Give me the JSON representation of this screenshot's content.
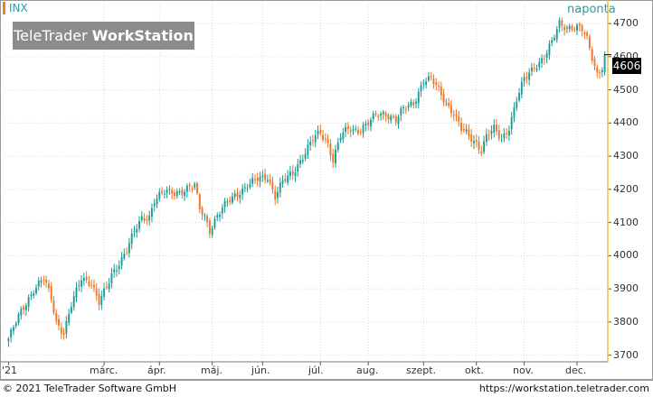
{
  "header": {
    "symbol": "INX",
    "frequency": "naponta",
    "brand_prefix": "TeleTrader ",
    "brand_bold": "WorkStation"
  },
  "last_price_label": "4606",
  "footer": {
    "copyright": "© 2021  TeleTrader Software GmbH",
    "url": "https://workstation.teletrader.com"
  },
  "colors": {
    "up": "#1a9b96",
    "down": "#f07424",
    "grid": "#d9d9d9",
    "axis_line": "#f0c040",
    "frame": "#999999"
  },
  "chart_data": {
    "type": "candlestick",
    "ylim": [
      3680,
      4760
    ],
    "y_ticks": [
      "3700",
      "3800",
      "3900",
      "4000",
      "4100",
      "4200",
      "4300",
      "4400",
      "4500",
      "4600",
      "4700"
    ],
    "x_tick_labels": [
      "'21",
      "márc.",
      "ápr.",
      "máj.",
      "jún.",
      "júl.",
      "aug.",
      "szept.",
      "okt.",
      "nov.",
      "dec."
    ],
    "trading_days": 238,
    "month_starts": [
      0,
      38,
      60,
      81,
      101,
      124,
      143,
      165,
      186,
      205,
      226
    ],
    "anchors": [
      [
        0,
        3750
      ],
      [
        5,
        3830
      ],
      [
        10,
        3900
      ],
      [
        14,
        3930
      ],
      [
        17,
        3870
      ],
      [
        19,
        3800
      ],
      [
        22,
        3770
      ],
      [
        25,
        3850
      ],
      [
        29,
        3930
      ],
      [
        33,
        3920
      ],
      [
        36,
        3860
      ],
      [
        39,
        3900
      ],
      [
        41,
        3940
      ],
      [
        44,
        3980
      ],
      [
        47,
        4020
      ],
      [
        50,
        4070
      ],
      [
        53,
        4110
      ],
      [
        56,
        4120
      ],
      [
        58,
        4170
      ],
      [
        62,
        4190
      ],
      [
        66,
        4190
      ],
      [
        70,
        4200
      ],
      [
        74,
        4210
      ],
      [
        76,
        4140
      ],
      [
        78,
        4120
      ],
      [
        80,
        4080
      ],
      [
        83,
        4120
      ],
      [
        87,
        4160
      ],
      [
        91,
        4190
      ],
      [
        95,
        4210
      ],
      [
        99,
        4230
      ],
      [
        103,
        4240
      ],
      [
        106,
        4180
      ],
      [
        109,
        4220
      ],
      [
        113,
        4250
      ],
      [
        117,
        4300
      ],
      [
        121,
        4350
      ],
      [
        124,
        4370
      ],
      [
        127,
        4340
      ],
      [
        129,
        4290
      ],
      [
        132,
        4360
      ],
      [
        135,
        4380
      ],
      [
        139,
        4380
      ],
      [
        143,
        4400
      ],
      [
        146,
        4420
      ],
      [
        150,
        4430
      ],
      [
        154,
        4410
      ],
      [
        157,
        4440
      ],
      [
        161,
        4460
      ],
      [
        165,
        4530
      ],
      [
        168,
        4530
      ],
      [
        171,
        4500
      ],
      [
        174,
        4460
      ],
      [
        177,
        4430
      ],
      [
        180,
        4380
      ],
      [
        183,
        4360
      ],
      [
        186,
        4340
      ],
      [
        188,
        4320
      ],
      [
        190,
        4360
      ],
      [
        193,
        4380
      ],
      [
        196,
        4350
      ],
      [
        199,
        4390
      ],
      [
        202,
        4470
      ],
      [
        205,
        4530
      ],
      [
        209,
        4570
      ],
      [
        213,
        4600
      ],
      [
        216,
        4640
      ],
      [
        219,
        4700
      ],
      [
        222,
        4690
      ],
      [
        225,
        4690
      ],
      [
        228,
        4680
      ],
      [
        230,
        4650
      ],
      [
        232,
        4600
      ],
      [
        234,
        4550
      ],
      [
        236,
        4570
      ],
      [
        237,
        4606
      ]
    ]
  }
}
